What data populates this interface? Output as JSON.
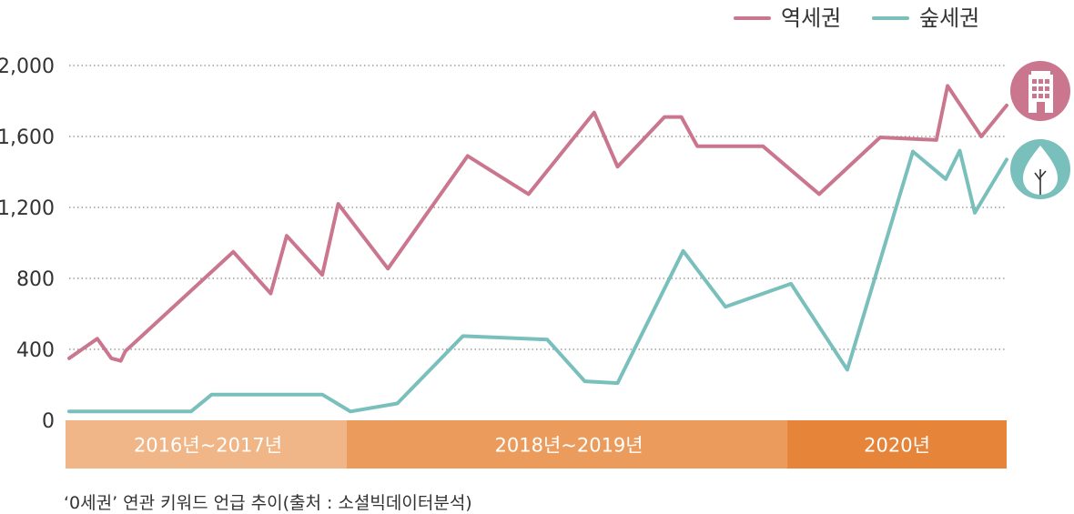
{
  "chart_data": {
    "type": "line",
    "ylim": [
      0,
      2000
    ],
    "y_ticks": [
      0,
      400,
      800,
      1200,
      1600,
      2000
    ],
    "y_tick_labels": [
      "0",
      "400",
      "800",
      "1,200",
      "1,600",
      "2,000"
    ],
    "grid": "horizontal-dotted",
    "legend_position": "top-right",
    "periods": [
      {
        "label": "2016년~2017년",
        "start": 0,
        "end": 0.3,
        "color": "#f0b687"
      },
      {
        "label": "2018년~2019년",
        "start": 0.3,
        "end": 0.77,
        "color": "#eb9c5d"
      },
      {
        "label": "2020년",
        "start": 0.77,
        "end": 1.0,
        "color": "#e6853a"
      }
    ],
    "series": [
      {
        "name": "역세권",
        "color": "#c9768e",
        "icon": "building-icon",
        "points": [
          [
            0.0,
            350
          ],
          [
            0.03,
            460
          ],
          [
            0.045,
            350
          ],
          [
            0.055,
            335
          ],
          [
            0.06,
            390
          ],
          [
            0.175,
            950
          ],
          [
            0.215,
            715
          ],
          [
            0.232,
            1040
          ],
          [
            0.27,
            820
          ],
          [
            0.287,
            1220
          ],
          [
            0.34,
            855
          ],
          [
            0.425,
            1490
          ],
          [
            0.49,
            1275
          ],
          [
            0.56,
            1735
          ],
          [
            0.585,
            1430
          ],
          [
            0.635,
            1710
          ],
          [
            0.653,
            1710
          ],
          [
            0.67,
            1545
          ],
          [
            0.74,
            1545
          ],
          [
            0.8,
            1275
          ],
          [
            0.865,
            1595
          ],
          [
            0.925,
            1580
          ],
          [
            0.937,
            1885
          ],
          [
            0.973,
            1600
          ],
          [
            1.0,
            1775
          ]
        ]
      },
      {
        "name": "숲세권",
        "color": "#79bfbc",
        "icon": "tree-icon",
        "points": [
          [
            0.0,
            50
          ],
          [
            0.13,
            50
          ],
          [
            0.152,
            145
          ],
          [
            0.27,
            145
          ],
          [
            0.3,
            50
          ],
          [
            0.35,
            95
          ],
          [
            0.42,
            475
          ],
          [
            0.51,
            455
          ],
          [
            0.55,
            220
          ],
          [
            0.585,
            210
          ],
          [
            0.655,
            955
          ],
          [
            0.7,
            640
          ],
          [
            0.77,
            770
          ],
          [
            0.83,
            285
          ],
          [
            0.9,
            1515
          ],
          [
            0.935,
            1360
          ],
          [
            0.95,
            1520
          ],
          [
            0.966,
            1170
          ],
          [
            1.0,
            1470
          ]
        ]
      }
    ]
  },
  "caption": "‘0세권’ 연관 키워드 언급 추이(출처 : 소셜빅데이터분석)"
}
